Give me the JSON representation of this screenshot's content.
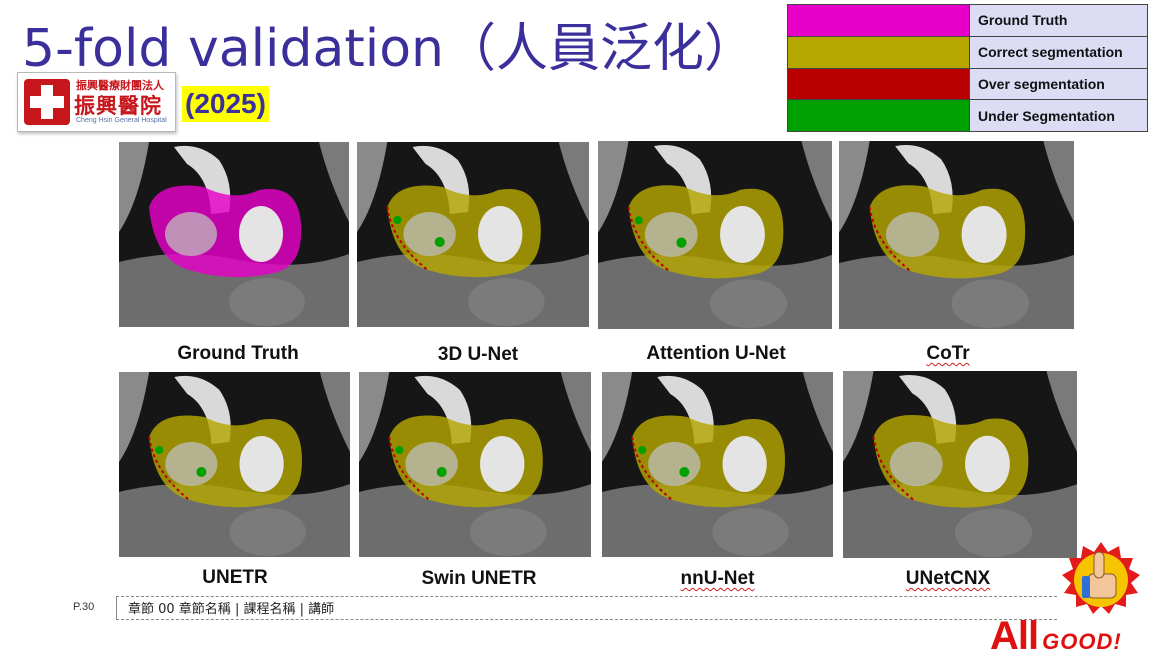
{
  "header": {
    "title": "5-fold validation（人員泛化）",
    "year_badge": "(2025)"
  },
  "logo": {
    "top_text": "振興醫療財團法人",
    "main_text": "振興醫院",
    "english_text": "Cheng Hsin General Hospital"
  },
  "legend": [
    {
      "label": "Ground Truth",
      "color": "#e600c8"
    },
    {
      "label": "Correct segmentation",
      "color": "#b5a600"
    },
    {
      "label": "Over segmentation",
      "color": "#b80000"
    },
    {
      "label": "Under Segmentation",
      "color": "#00a000"
    }
  ],
  "panels": [
    {
      "caption": "Ground Truth",
      "overlay": "#e600c8",
      "over": false,
      "under": false
    },
    {
      "caption": "3D U-Net",
      "overlay": "#b5a600",
      "over": true,
      "under": true
    },
    {
      "caption": "Attention U-Net",
      "overlay": "#b5a600",
      "over": true,
      "under": true
    },
    {
      "caption": "CoTr",
      "overlay": "#b5a600",
      "over": true,
      "under": false
    },
    {
      "caption": "UNETR",
      "overlay": "#b5a600",
      "over": true,
      "under": true
    },
    {
      "caption": "Swin UNETR",
      "overlay": "#b5a600",
      "over": true,
      "under": true
    },
    {
      "caption": "nnU-Net",
      "overlay": "#b5a600",
      "over": true,
      "under": true
    },
    {
      "caption": "UNetCNX",
      "overlay": "#b5a600",
      "over": true,
      "under": false
    }
  ],
  "footer": {
    "page": "P.30",
    "text": "章節 00 章節名稱 | 課程名稱 | 講師"
  },
  "badge": {
    "all": "All",
    "good": "GOOD!"
  }
}
